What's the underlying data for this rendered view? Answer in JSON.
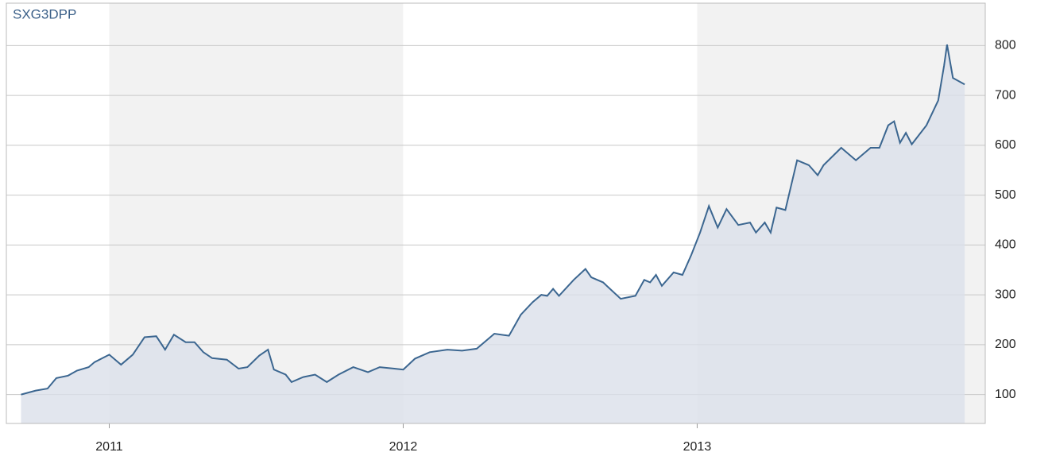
{
  "chart_data": {
    "type": "area",
    "title": "SXG3DPP",
    "x": [
      2010.7,
      2010.75,
      2010.79,
      2010.82,
      2010.86,
      2010.89,
      2010.93,
      2010.95,
      2011.0,
      2011.04,
      2011.08,
      2011.12,
      2011.16,
      2011.19,
      2011.22,
      2011.26,
      2011.29,
      2011.32,
      2011.35,
      2011.4,
      2011.44,
      2011.47,
      2011.51,
      2011.54,
      2011.56,
      2011.6,
      2011.62,
      2011.66,
      2011.7,
      2011.74,
      2011.78,
      2011.83,
      2011.88,
      2011.92,
      2011.97,
      2012.0,
      2012.04,
      2012.09,
      2012.15,
      2012.2,
      2012.25,
      2012.31,
      2012.36,
      2012.4,
      2012.44,
      2012.47,
      2012.49,
      2012.51,
      2012.53,
      2012.58,
      2012.62,
      2012.64,
      2012.68,
      2012.74,
      2012.79,
      2012.82,
      2012.84,
      2012.86,
      2012.88,
      2012.92,
      2012.95,
      2012.98,
      2013.01,
      2013.04,
      2013.07,
      2013.1,
      2013.14,
      2013.18,
      2013.2,
      2013.23,
      2013.25,
      2013.27,
      2013.3,
      2013.34,
      2013.38,
      2013.41,
      2013.43,
      2013.49,
      2013.54,
      2013.59,
      2013.62,
      2013.65,
      2013.67,
      2013.69,
      2013.71,
      2013.73,
      2013.78,
      2013.82,
      2013.84,
      2013.85,
      2013.87,
      2013.91
    ],
    "values": [
      100,
      108,
      112,
      133,
      138,
      148,
      155,
      165,
      180,
      160,
      180,
      215,
      217,
      190,
      220,
      205,
      205,
      185,
      173,
      170,
      152,
      155,
      178,
      190,
      150,
      140,
      125,
      135,
      140,
      125,
      140,
      155,
      145,
      155,
      152,
      150,
      172,
      185,
      190,
      188,
      192,
      222,
      218,
      260,
      285,
      300,
      298,
      312,
      298,
      330,
      352,
      335,
      325,
      292,
      298,
      330,
      325,
      340,
      318,
      345,
      340,
      380,
      425,
      478,
      435,
      472,
      440,
      445,
      425,
      445,
      425,
      475,
      470,
      570,
      560,
      540,
      560,
      595,
      570,
      595,
      595,
      640,
      648,
      605,
      625,
      602,
      640,
      690,
      760,
      802,
      735,
      722
    ],
    "color": "#3b6690",
    "fill": "#dbe0ea",
    "xlim": [
      2010.65,
      2013.98
    ],
    "xticks": [
      2011,
      2012,
      2013
    ],
    "ylim": [
      42,
      885
    ],
    "yticks": [
      100,
      200,
      300,
      400,
      500,
      600,
      700,
      800
    ],
    "grid": true
  }
}
